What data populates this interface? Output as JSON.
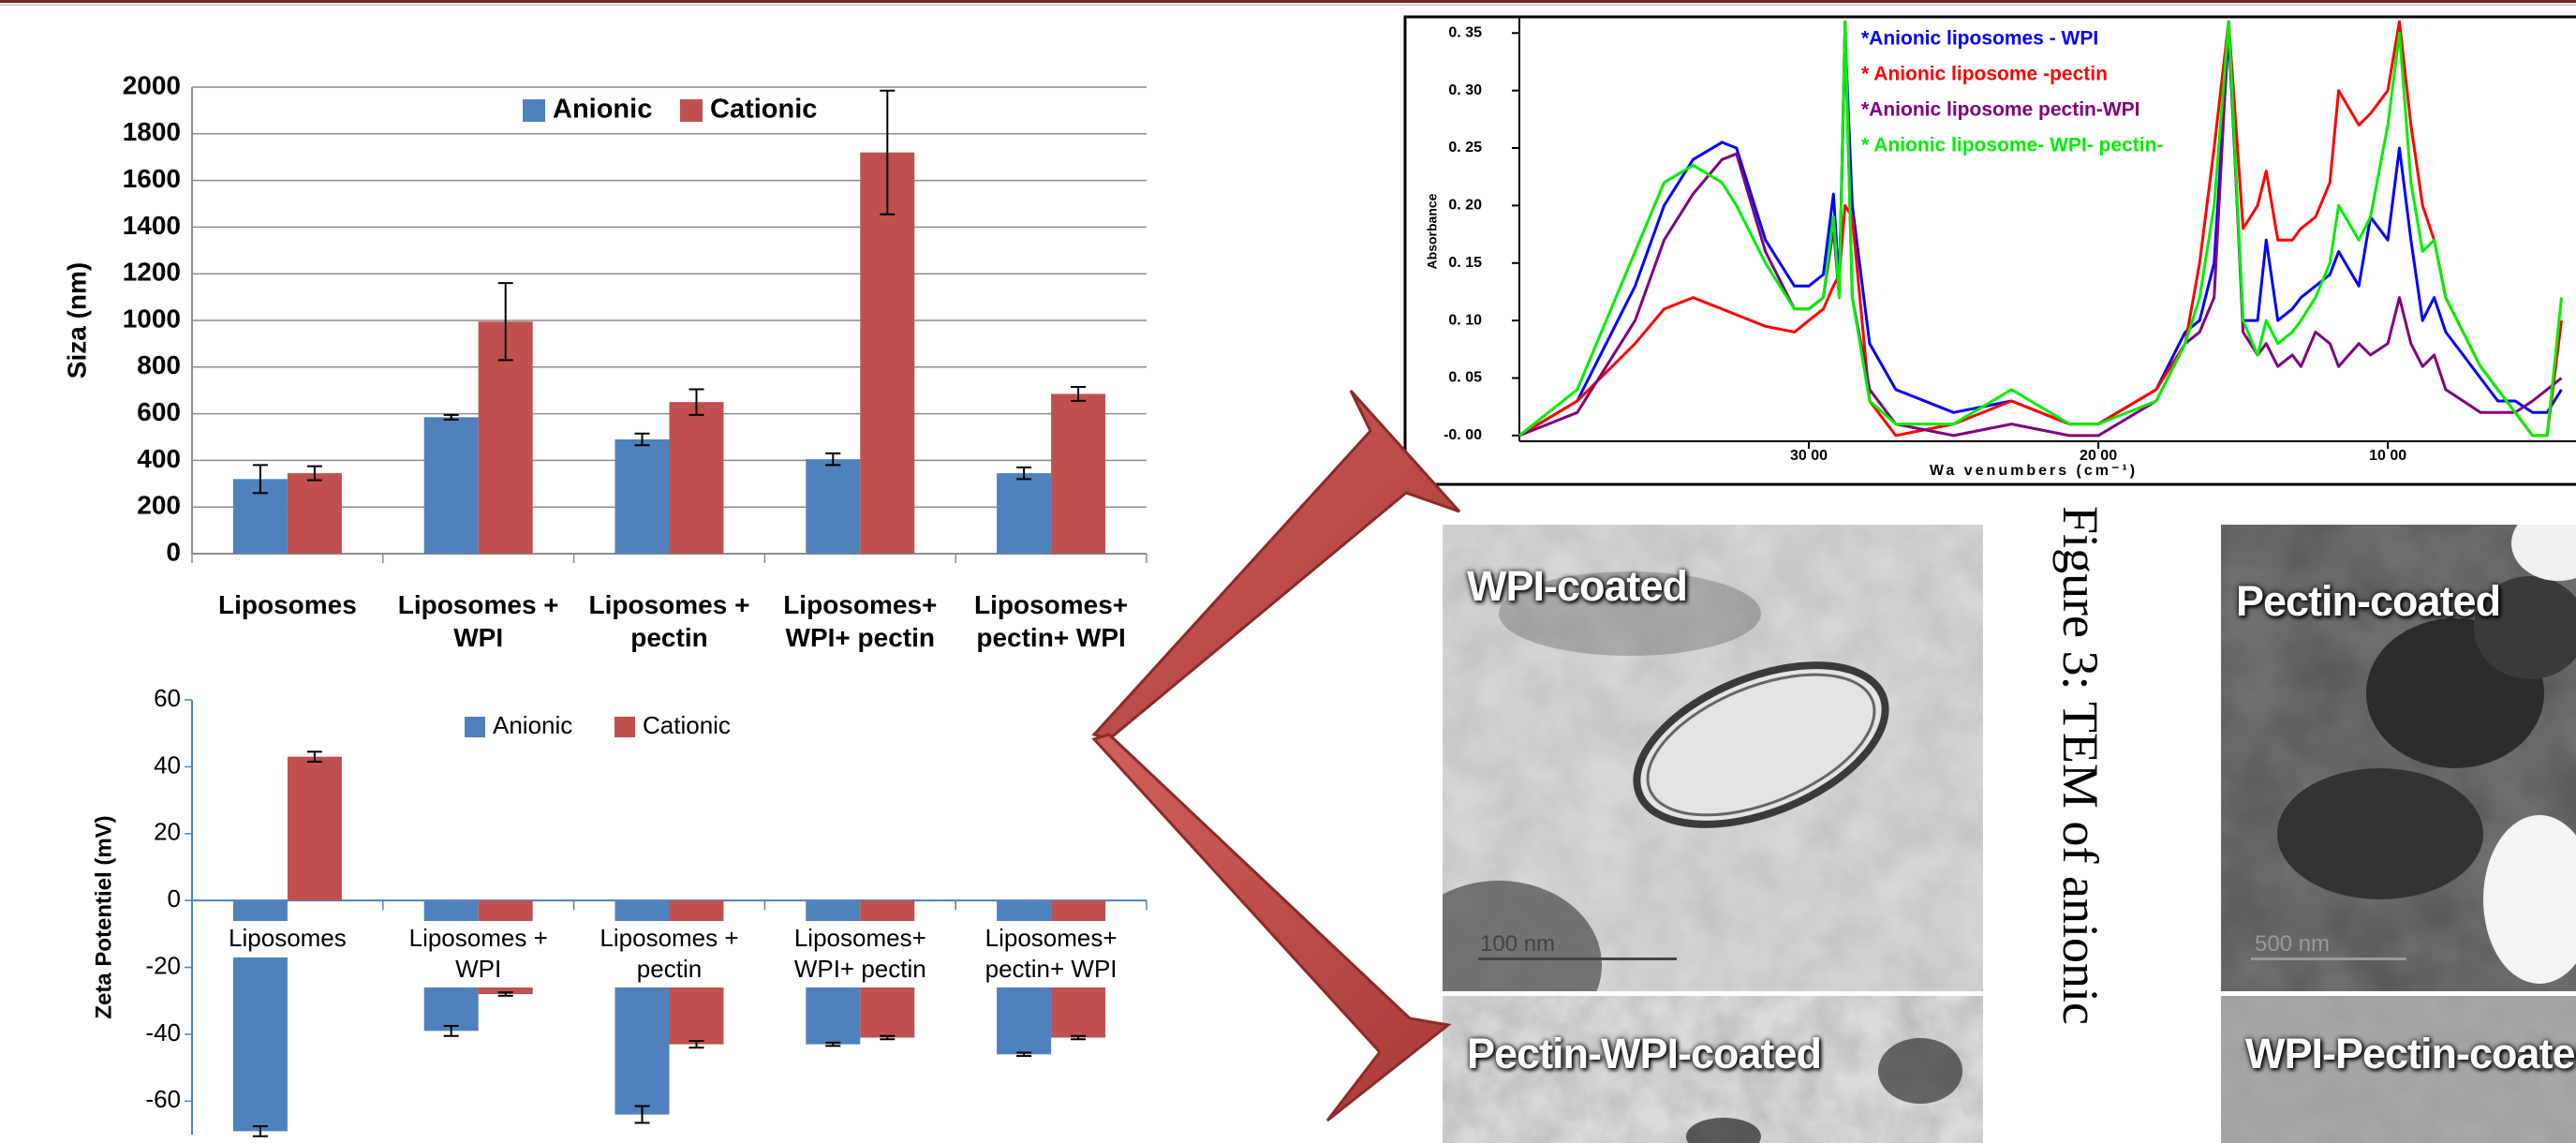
{
  "chart_data": [
    {
      "type": "bar",
      "ylabel": "Siza (nm)",
      "categories": [
        "Liposomes",
        "Liposomes + WPI",
        "Liposomes + pectin",
        "Liposomes+ WPI+ pectin",
        "Liposomes+ pectin+ WPI"
      ],
      "series": [
        {
          "name": "Anionic",
          "color": "#4f81bd",
          "values": [
            320,
            585,
            490,
            405,
            345
          ],
          "errors": [
            60,
            10,
            25,
            25,
            25
          ]
        },
        {
          "name": "Cationic",
          "color": "#c0504d",
          "values": [
            345,
            995,
            650,
            1720,
            685
          ],
          "errors": [
            30,
            165,
            55,
            265,
            30
          ]
        }
      ],
      "ylim": [
        0,
        2000
      ],
      "yticks": [
        0,
        200,
        400,
        600,
        800,
        1000,
        1200,
        1400,
        1600,
        1800,
        2000
      ],
      "grid": true,
      "legend": "top"
    },
    {
      "type": "bar",
      "ylabel": "Zeta Potentiel (mV)",
      "categories": [
        "Liposomes",
        "Liposomes + WPI",
        "Liposomes + pectin",
        "Liposomes+ WPI+ pectin",
        "Liposomes+ pectin+ WPI"
      ],
      "series": [
        {
          "name": "Anionic",
          "color": "#4f81bd",
          "values": [
            -69,
            -39,
            -64,
            -43,
            -46
          ],
          "errors": [
            1.5,
            1.5,
            2.5,
            0.5,
            0.5
          ]
        },
        {
          "name": "Cationic",
          "color": "#c0504d",
          "values": [
            43,
            -28,
            -43,
            -41,
            -41
          ],
          "errors": [
            1.5,
            0.5,
            1,
            0.5,
            0.5
          ]
        }
      ],
      "ylim": [
        -70,
        60
      ],
      "yticks": [
        -60,
        -40,
        -20,
        0,
        20,
        40,
        60
      ],
      "grid": false,
      "legend": "top"
    },
    {
      "type": "line",
      "ylabel": "Absorbance",
      "xlabel": "Wa venumbers (cm⁻¹)",
      "x": [
        4000,
        3800,
        3600,
        3500,
        3400,
        3300,
        3250,
        3150,
        3050,
        3000,
        2950,
        2915,
        2895,
        2875,
        2850,
        2790,
        2700,
        2500,
        2300,
        2100,
        2000,
        1800,
        1700,
        1650,
        1600,
        1550,
        1500,
        1450,
        1420,
        1380,
        1330,
        1300,
        1250,
        1200,
        1170,
        1100,
        1060,
        1000,
        960,
        920,
        880,
        840,
        800,
        740,
        680,
        620,
        560,
        500,
        450,
        400
      ],
      "series": [
        {
          "name": "*Anionic liposomes - WPI",
          "color": "#0000ff",
          "values": [
            0,
            0.03,
            0.13,
            0.2,
            0.24,
            0.255,
            0.25,
            0.17,
            0.13,
            0.13,
            0.14,
            0.21,
            0.13,
            0.35,
            0.2,
            0.08,
            0.04,
            0.02,
            0.03,
            0.01,
            0.01,
            0.04,
            0.09,
            0.1,
            0.15,
            0.35,
            0.1,
            0.1,
            0.17,
            0.1,
            0.11,
            0.12,
            0.13,
            0.14,
            0.16,
            0.13,
            0.19,
            0.17,
            0.25,
            0.17,
            0.1,
            0.12,
            0.09,
            0.07,
            0.05,
            0.03,
            0.03,
            0.02,
            0.02,
            0.04
          ]
        },
        {
          "name": "* Anionic liposome -pectin",
          "color": "#ff0000",
          "values": [
            0,
            0.03,
            0.08,
            0.11,
            0.12,
            0.11,
            0.105,
            0.095,
            0.09,
            0.1,
            0.11,
            0.13,
            0.14,
            0.2,
            0.19,
            0.03,
            0,
            0.01,
            0.03,
            0.01,
            0.01,
            0.04,
            0.08,
            0.15,
            0.25,
            0.36,
            0.18,
            0.2,
            0.23,
            0.17,
            0.17,
            0.18,
            0.19,
            0.22,
            0.3,
            0.27,
            0.28,
            0.3,
            0.36,
            0.27,
            0.2,
            0.17,
            0.12,
            0.09,
            0.06,
            0.04,
            0.02,
            0,
            0,
            0.1
          ]
        },
        {
          "name": "*Anionic liposome pectin-WPI",
          "color": "#800080",
          "values": [
            0,
            0.02,
            0.1,
            0.17,
            0.21,
            0.24,
            0.245,
            0.16,
            0.11,
            0.11,
            0.12,
            0.18,
            0.12,
            0.36,
            0.12,
            0.04,
            0.01,
            0,
            0.01,
            0,
            0,
            0.03,
            0.08,
            0.09,
            0.12,
            0.36,
            0.09,
            0.07,
            0.08,
            0.06,
            0.07,
            0.06,
            0.09,
            0.08,
            0.06,
            0.08,
            0.07,
            0.08,
            0.12,
            0.08,
            0.06,
            0.07,
            0.04,
            0.03,
            0.02,
            0.02,
            0.02,
            0.03,
            0.04,
            0.05
          ]
        },
        {
          "name": "* Anionic liposome- WPI- pectin-",
          "color": "#00ee00",
          "values": [
            0,
            0.04,
            0.16,
            0.22,
            0.235,
            0.22,
            0.2,
            0.15,
            0.11,
            0.11,
            0.12,
            0.19,
            0.12,
            0.36,
            0.12,
            0.03,
            0.01,
            0.01,
            0.04,
            0.01,
            0.01,
            0.03,
            0.08,
            0.12,
            0.2,
            0.36,
            0.1,
            0.07,
            0.1,
            0.08,
            0.09,
            0.1,
            0.12,
            0.15,
            0.2,
            0.17,
            0.19,
            0.27,
            0.35,
            0.22,
            0.16,
            0.17,
            0.12,
            0.09,
            0.06,
            0.04,
            0.02,
            0,
            0,
            0.12
          ]
        }
      ],
      "xlim": [
        4000,
        350
      ],
      "xticks": [
        {
          "value": 3000,
          "label": "30 00"
        },
        {
          "value": 2000,
          "label": "20 00"
        },
        {
          "value": 1000,
          "label": "10 00"
        }
      ],
      "ylim": [
        -0.005,
        0.36
      ],
      "yticks": [
        {
          "value": 0,
          "label": "-0. 00"
        },
        {
          "value": 0.05,
          "label": "0. 05"
        },
        {
          "value": 0.1,
          "label": "0. 10"
        },
        {
          "value": 0.15,
          "label": "0. 15"
        },
        {
          "value": 0.2,
          "label": "0. 20"
        },
        {
          "value": 0.25,
          "label": "0. 25"
        },
        {
          "value": 0.3,
          "label": "0. 30"
        },
        {
          "value": 0.35,
          "label": "0. 35"
        }
      ],
      "grid": false
    }
  ],
  "images": [
    {
      "label": "WPI-coated",
      "scale": "100 nm"
    },
    {
      "label": "Pectin-WPI-coated"
    },
    {
      "label": "Pectin-coated",
      "scale": "500 nm"
    },
    {
      "label": "WPI-Pectin-coated"
    }
  ],
  "caption": "Figure 3: TEM of anionic"
}
